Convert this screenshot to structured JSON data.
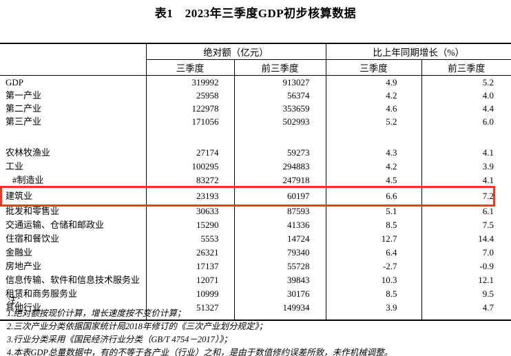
{
  "title": "表1　2023年三季度GDP初步核算数据",
  "table": {
    "group_headers": [
      "绝对额（亿元）",
      "比上年同期增长（%）"
    ],
    "sub_headers": [
      "三季度",
      "前三季度",
      "三季度",
      "前三季度"
    ],
    "rows": [
      {
        "label": "GDP",
        "values": [
          "319992",
          "913027",
          "4.9",
          "5.2"
        ]
      },
      {
        "label": "第一产业",
        "values": [
          "25958",
          "56374",
          "4.2",
          "4.0"
        ]
      },
      {
        "label": "第二产业",
        "values": [
          "122978",
          "353659",
          "4.6",
          "4.4"
        ]
      },
      {
        "label": "第三产业",
        "values": [
          "171056",
          "502993",
          "5.2",
          "6.0"
        ],
        "spacer_after": true
      },
      {
        "label": "农林牧渔业",
        "values": [
          "27174",
          "59273",
          "4.3",
          "4.1"
        ]
      },
      {
        "label": "工业",
        "values": [
          "100295",
          "294883",
          "4.2",
          "3.9"
        ]
      },
      {
        "label": "#制造业",
        "indent": true,
        "values": [
          "83272",
          "247918",
          "4.5",
          "4.1"
        ]
      },
      {
        "label": "建筑业",
        "highlight": true,
        "values": [
          "23193",
          "60197",
          "6.6",
          "7.2"
        ]
      },
      {
        "label": "批发和零售业",
        "values": [
          "30633",
          "87593",
          "5.1",
          "6.1"
        ]
      },
      {
        "label": "交通运输、仓储和邮政业",
        "values": [
          "15290",
          "41336",
          "8.5",
          "7.5"
        ]
      },
      {
        "label": "住宿和餐饮业",
        "values": [
          "5553",
          "14724",
          "12.7",
          "14.4"
        ]
      },
      {
        "label": "金融业",
        "values": [
          "26321",
          "79340",
          "6.4",
          "7.0"
        ]
      },
      {
        "label": "房地产业",
        "values": [
          "17137",
          "55728",
          "-2.7",
          "-0.9"
        ]
      },
      {
        "label": "信息传输、软件和信息技术服务业",
        "values": [
          "12071",
          "39843",
          "10.3",
          "12.1"
        ]
      },
      {
        "label": "租赁和商务服务业",
        "values": [
          "10999",
          "30176",
          "8.5",
          "9.5"
        ]
      },
      {
        "label": "其他行业",
        "values": [
          "51327",
          "149934",
          "3.9",
          "4.7"
        ]
      }
    ]
  },
  "highlight": {
    "row_label": "建筑业",
    "color": "#ee3b1e"
  },
  "notes": {
    "heading": "注：",
    "items": [
      "1.绝对额按现价计算，增长速度按不变价计算；",
      "2.三次产业分类依据国家统计局2018年修订的《三次产业划分规定》；",
      "3.行业分类采用《国民经济行业分类（GB/T 4754－2017）》；",
      "4.本表GDP总量数据中，有的不等于各产业（行业）之和，是由于数值修约误差所致，未作机械调整。"
    ]
  }
}
